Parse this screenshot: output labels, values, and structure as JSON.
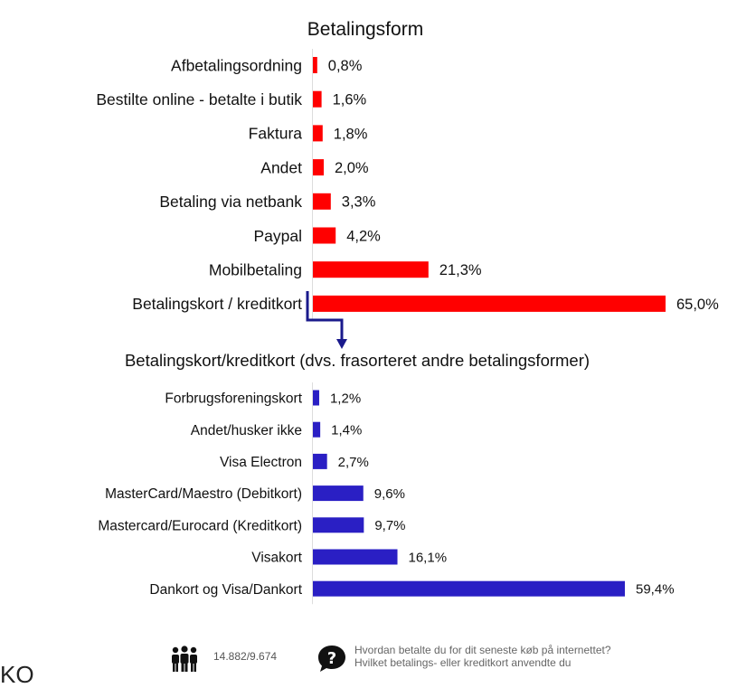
{
  "chart_data": [
    {
      "type": "bar",
      "orientation": "horizontal",
      "title": "Betalingsform",
      "categories": [
        "Afbetalingsordning",
        "Bestilte online - betalte i butik",
        "Faktura",
        "Andet",
        "Betaling via netbank",
        "Paypal",
        "Mobilbetaling",
        "Betalingskort / kreditkort"
      ],
      "values": [
        0.8,
        1.6,
        1.8,
        2.0,
        3.3,
        4.2,
        21.3,
        65.0
      ],
      "value_labels": [
        "0,8%",
        "1,6%",
        "1,8%",
        "2,0%",
        "3,3%",
        "4,2%",
        "21,3%",
        "65,0%"
      ],
      "color": "#ff0000",
      "xlim": [
        0,
        65.0
      ]
    },
    {
      "type": "bar",
      "orientation": "horizontal",
      "title": "Betalingskort/kreditkort (dvs. frasorteret andre betalingsformer)",
      "categories": [
        "Forbrugsforeningskort",
        "Andet/husker ikke",
        "Visa Electron",
        "MasterCard/Maestro (Debitkort)",
        "Mastercard/Eurocard (Kreditkort)",
        "Visakort",
        "Dankort og Visa/Dankort"
      ],
      "values": [
        1.2,
        1.4,
        2.7,
        9.6,
        9.7,
        16.1,
        59.4
      ],
      "value_labels": [
        "1,2%",
        "1,4%",
        "2,7%",
        "9,6%",
        "9,7%",
        "16,1%",
        "59,4%"
      ],
      "color": "#2a1fc4",
      "xlim": [
        0,
        59.4
      ]
    }
  ],
  "connector_color": "#1a1a8c",
  "footer": {
    "respondents_icon": "people-icon",
    "respondents": "14.882/9.674",
    "question_icon": "question-bubble-icon",
    "question_line1": "Hvordan betalte du for dit seneste køb på internettet?",
    "question_line2": "Hvilket betalings- eller kreditkort anvendte du"
  },
  "corner_glyph": "KO"
}
